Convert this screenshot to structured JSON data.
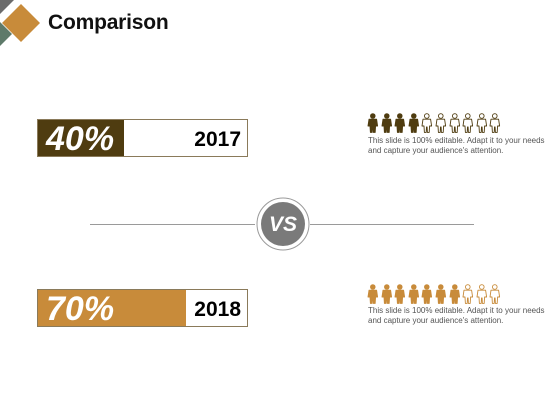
{
  "slide": {
    "title": "Comparison"
  },
  "colors": {
    "dark_brown": "#4f3c10",
    "gold": "#c88b3a",
    "gray": "#7a7a7a"
  },
  "comparisons": [
    {
      "percent_label": "40%",
      "percent": 40,
      "year": "2017",
      "people_filled": 4,
      "people_total": 10,
      "description": "This slide is 100% editable. Adapt it to your needs and capture your audience's attention."
    },
    {
      "percent_label": "70%",
      "percent": 70,
      "year": "2018",
      "people_filled": 7,
      "people_total": 10,
      "description": "This slide is 100% editable. Adapt it to your needs and capture your audience's attention."
    }
  ],
  "vs_badge": {
    "label": "VS"
  },
  "icons": {
    "person": "person-icon",
    "corner": "diamond-logo-icon"
  }
}
